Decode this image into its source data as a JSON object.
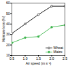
{
  "chart_data": {
    "type": "line",
    "x_label": "Air speed (m s⁻¹)",
    "y_label": "Moisture loss (%)",
    "x": [
      0.5,
      1.0,
      1.5,
      2.0,
      2.5
    ],
    "series": [
      {
        "name": "Wheat",
        "color": "#000000",
        "marker": "open_circle",
        "values": [
          31,
          40,
          49,
          57,
          57
        ]
      },
      {
        "name": "Maize",
        "color": "#3cb44b",
        "marker": "circle",
        "values": [
          22,
          27,
          28,
          37,
          39
        ]
      }
    ],
    "xlim": [
      0.5,
      2.5
    ],
    "xticks": [
      {
        "value": 0.5,
        "label": "0.5"
      },
      {
        "value": 1.0,
        "label": "1.0"
      },
      {
        "value": 1.5,
        "label": "1.5"
      },
      {
        "value": 2.0,
        "label": "2.0"
      },
      {
        "value": 2.5,
        "label": "2.5"
      }
    ],
    "ylim": [
      10,
      60
    ],
    "yticks": [
      10,
      20,
      30,
      40,
      50,
      60
    ],
    "grid": false,
    "legend": "bottom-right"
  }
}
